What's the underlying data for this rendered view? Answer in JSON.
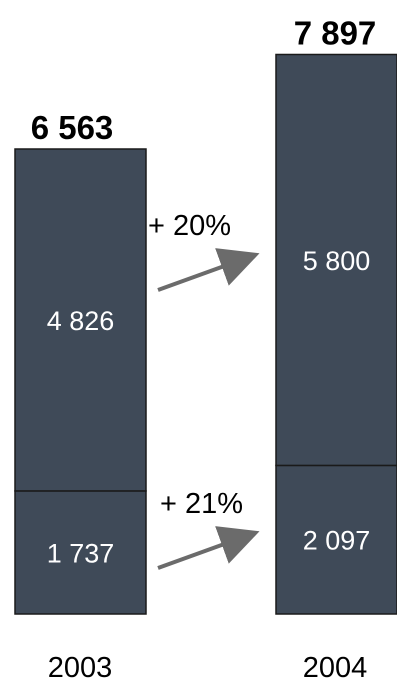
{
  "chart_data": {
    "type": "bar",
    "stacked": true,
    "categories": [
      "2003",
      "2004"
    ],
    "series": [
      {
        "values": [
          1737,
          2097
        ]
      },
      {
        "values": [
          4826,
          5800
        ]
      }
    ],
    "totals": [
      6563,
      7897
    ],
    "labels": {
      "totals": [
        "6 563",
        "7 897"
      ],
      "bottom": [
        "1 737",
        "2 097"
      ],
      "top": [
        "4 826",
        "5 800"
      ]
    },
    "growth": {
      "top": "+ 20%",
      "bottom": "+ 21%"
    },
    "colors": {
      "bar_fill": "#3f4a58",
      "bar_stroke": "#1a1a1a",
      "arrow": "#6b6b6b",
      "segment_text": "#ffffff"
    },
    "grid": false,
    "title": "",
    "xlabel": "",
    "ylabel": ""
  }
}
